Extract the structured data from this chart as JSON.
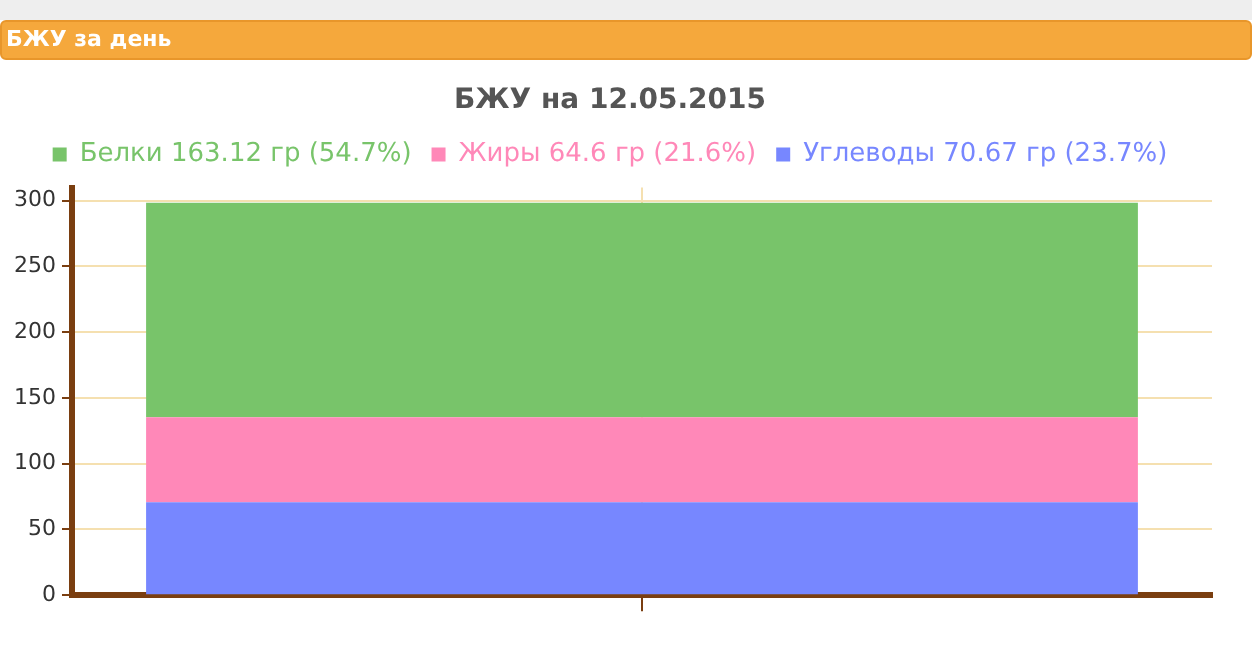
{
  "chart_data": {
    "type": "bar",
    "title": "БЖУ на 12.05.2015",
    "annotations": [
      "БЖУ за день"
    ],
    "categories": [
      null
    ],
    "stacked": true,
    "series": [
      {
        "name": "Углеводы 70.67 гр (23.7%)",
        "color": "#7787ff",
        "values": [
          70.67
        ]
      },
      {
        "name": "Жиры 64.6 гр (21.6%)",
        "color": "#ff88b8",
        "values": [
          64.6
        ]
      },
      {
        "name": "Белки 163.12 гр (54.7%)",
        "color": "#78c46a",
        "values": [
          163.12
        ]
      }
    ],
    "ylim": [
      0,
      310
    ],
    "yticks": [
      0,
      50,
      100,
      150,
      200,
      250,
      300
    ],
    "grid": true,
    "legend": "top"
  }
}
